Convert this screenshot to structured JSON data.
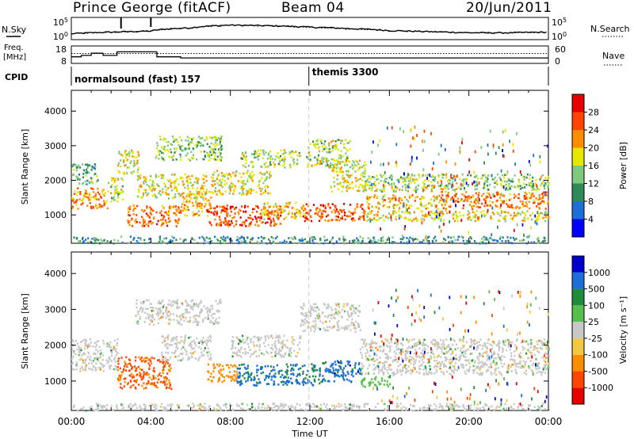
{
  "header": {
    "title": "Prince George (fitACF)",
    "beam": "Beam 04",
    "date": "20/Jun/2011"
  },
  "chart_data": [
    {
      "type": "line",
      "panel": "noise",
      "ylabel_left": "N.Sky",
      "ylabel_right": "N.Search",
      "yticks_left": [
        "10^5",
        "10^0"
      ],
      "yticks_right": [
        "10^5",
        "10^0"
      ],
      "yscale": "log",
      "series": [
        {
          "name": "N.Sky",
          "x": [
            0,
            2,
            4,
            6,
            8,
            10,
            12,
            14,
            16,
            18,
            20,
            22,
            24
          ],
          "values": [
            10,
            30,
            60,
            500,
            3000,
            2000,
            800,
            300,
            80,
            40,
            20,
            20,
            30
          ]
        },
        {
          "name": "N.Search",
          "x": [
            0,
            2,
            4,
            6,
            8,
            10,
            12,
            14,
            16,
            18,
            20,
            22,
            24
          ],
          "values": [
            8,
            25,
            50,
            400,
            2500,
            1800,
            700,
            250,
            70,
            35,
            18,
            18,
            25
          ]
        }
      ]
    },
    {
      "type": "line",
      "panel": "frequency",
      "ylabel_left": "Freq. [MHz]",
      "ylabel_right": "Nave",
      "yticks_left": [
        "18",
        "8"
      ],
      "yticks_right": [
        "60",
        "0"
      ],
      "series": [
        {
          "name": "Freq. [MHz]",
          "x": [
            0,
            0.5,
            0.5,
            1,
            1,
            1.6,
            1.6,
            2.3,
            2.3,
            4.3,
            4.3,
            5.5,
            5.5,
            24
          ],
          "values": [
            11.5,
            11.5,
            12.5,
            12.5,
            14,
            14,
            12.5,
            12.5,
            15,
            15,
            11.5,
            11.5,
            10.7,
            10.7
          ]
        },
        {
          "name": "Nave",
          "x": [
            0,
            24
          ],
          "values": [
            35,
            35
          ]
        }
      ]
    },
    {
      "type": "table",
      "panel": "cpid",
      "label": "CPID",
      "segments": [
        {
          "name": "normalsound (fast) 157",
          "start": 0,
          "end": 11.95
        },
        {
          "name": "themis 3300",
          "start": 11.95,
          "end": 24
        }
      ]
    },
    {
      "type": "heatmap",
      "panel": "power",
      "ylabel": "Slant Range [km]",
      "yticks": [
        1000,
        2000,
        3000,
        4000
      ],
      "ylim": [
        180,
        4600
      ],
      "xlim": [
        0,
        24
      ],
      "colorbar": {
        "label": "Power [dB]",
        "ticks": [
          "4",
          "8",
          "12",
          "16",
          "20",
          "24",
          "28"
        ],
        "colors": [
          "#0000ff",
          "#1a6fd9",
          "#2e8b57",
          "#7fc97f",
          "#e6e600",
          "#ff8c00",
          "#ff4500",
          "#e60000"
        ]
      },
      "bands": [
        {
          "t0": 0.0,
          "t1": 1.8,
          "r0": 1200,
          "r1": 1800,
          "level": 20
        },
        {
          "t0": 0.0,
          "t1": 1.3,
          "r0": 1900,
          "r1": 2500,
          "level": 10
        },
        {
          "t0": 1.8,
          "t1": 2.6,
          "r0": 1400,
          "r1": 2100,
          "level": 14
        },
        {
          "t0": 2.3,
          "t1": 3.4,
          "r0": 2200,
          "r1": 2900,
          "level": 15
        },
        {
          "t0": 2.8,
          "t1": 5.5,
          "r0": 700,
          "r1": 1300,
          "level": 22
        },
        {
          "t0": 3.3,
          "t1": 6.8,
          "r0": 1500,
          "r1": 2200,
          "level": 16
        },
        {
          "t0": 4.2,
          "t1": 7.6,
          "r0": 2600,
          "r1": 3300,
          "level": 12
        },
        {
          "t0": 5.5,
          "t1": 7.0,
          "r0": 1000,
          "r1": 1700,
          "level": 18
        },
        {
          "t0": 6.8,
          "t1": 10.5,
          "r0": 700,
          "r1": 1300,
          "level": 24
        },
        {
          "t0": 7.0,
          "t1": 10.0,
          "r0": 1600,
          "r1": 2300,
          "level": 16
        },
        {
          "t0": 8.5,
          "t1": 11.5,
          "r0": 2400,
          "r1": 2900,
          "level": 14
        },
        {
          "t0": 9.5,
          "t1": 11.8,
          "r0": 900,
          "r1": 1400,
          "level": 18
        },
        {
          "t0": 11.6,
          "t1": 14.8,
          "r0": 850,
          "r1": 1350,
          "level": 24
        },
        {
          "t0": 11.8,
          "t1": 14.0,
          "r0": 2400,
          "r1": 3200,
          "level": 14
        },
        {
          "t0": 13.0,
          "t1": 14.8,
          "r0": 1700,
          "r1": 2600,
          "level": 16
        },
        {
          "t0": 14.8,
          "t1": 18.5,
          "r0": 1200,
          "r1": 1600,
          "level": 18
        },
        {
          "t0": 14.5,
          "t1": 19.5,
          "r0": 1700,
          "r1": 2200,
          "level": 14
        },
        {
          "t0": 18.5,
          "t1": 24.0,
          "r0": 1200,
          "r1": 1700,
          "level": 22
        },
        {
          "t0": 19.5,
          "t1": 24.0,
          "r0": 1750,
          "r1": 2200,
          "level": 12
        },
        {
          "t0": 14.8,
          "t1": 24.0,
          "r0": 850,
          "r1": 1150,
          "level": 16
        },
        {
          "t0": 0.0,
          "t1": 24.0,
          "r0": 200,
          "r1": 400,
          "level": 8
        }
      ]
    },
    {
      "type": "heatmap",
      "panel": "velocity",
      "ylabel": "Slant Range [km]",
      "yticks": [
        1000,
        2000,
        3000,
        4000
      ],
      "ylim": [
        180,
        4600
      ],
      "xlim": [
        0,
        24
      ],
      "xticks": [
        "00:00",
        "04:00",
        "08:00",
        "12:00",
        "16:00",
        "20:00",
        "00:00"
      ],
      "xlabel": "Time UT",
      "colorbar": {
        "label": "Velocity [m s⁻¹]",
        "ticks": [
          "-1000",
          "-500",
          "-100",
          "-25",
          "25",
          "100",
          "500",
          "1000"
        ],
        "colors": [
          "#e60000",
          "#ff4500",
          "#ff8c00",
          "#f2c744",
          "#c8c8c8",
          "#55c04a",
          "#1e8c3a",
          "#1a6fd9",
          "#0000cc"
        ]
      },
      "bands": [
        {
          "t0": 0.0,
          "t1": 2.3,
          "r0": 1300,
          "r1": 2200,
          "level": 0
        },
        {
          "t0": 2.3,
          "t1": 5.0,
          "r0": 800,
          "r1": 1700,
          "level": -600
        },
        {
          "t0": 3.2,
          "t1": 7.5,
          "r0": 2600,
          "r1": 3300,
          "level": 0
        },
        {
          "t0": 4.5,
          "t1": 7.0,
          "r0": 1600,
          "r1": 2300,
          "level": 0
        },
        {
          "t0": 6.8,
          "t1": 8.3,
          "r0": 1000,
          "r1": 1500,
          "level": -300
        },
        {
          "t0": 8.3,
          "t1": 12.5,
          "r0": 900,
          "r1": 1500,
          "level": 600
        },
        {
          "t0": 8.0,
          "t1": 11.5,
          "r0": 1700,
          "r1": 2300,
          "level": 0
        },
        {
          "t0": 11.5,
          "t1": 14.5,
          "r0": 2400,
          "r1": 3200,
          "level": 0
        },
        {
          "t0": 12.5,
          "t1": 14.6,
          "r0": 1000,
          "r1": 1600,
          "level": 700
        },
        {
          "t0": 14.5,
          "t1": 24.0,
          "r0": 1200,
          "r1": 2200,
          "level": 0
        },
        {
          "t0": 14.5,
          "t1": 16.0,
          "r0": 850,
          "r1": 1150,
          "level": 60
        },
        {
          "t0": 0.0,
          "t1": 24.0,
          "r0": 200,
          "r1": 400,
          "level": 0
        }
      ]
    }
  ]
}
